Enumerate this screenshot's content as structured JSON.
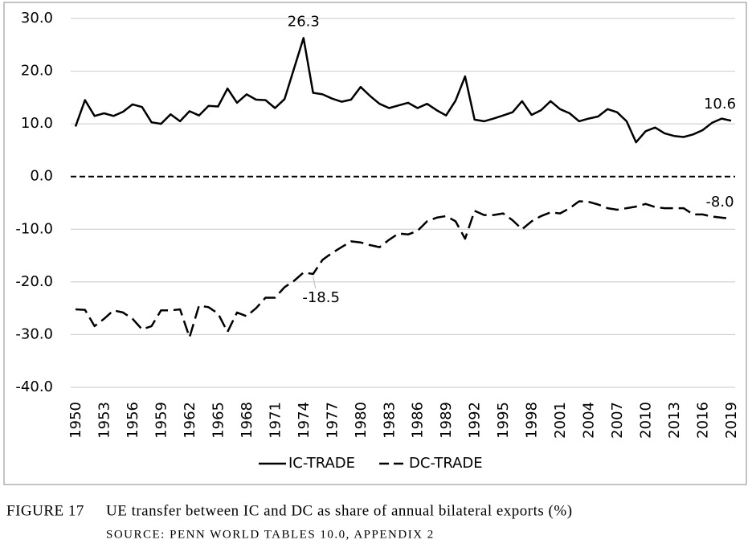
{
  "chart_data": {
    "type": "line",
    "x": [
      1950,
      1951,
      1952,
      1953,
      1954,
      1955,
      1956,
      1957,
      1958,
      1959,
      1960,
      1961,
      1962,
      1963,
      1964,
      1965,
      1966,
      1967,
      1968,
      1969,
      1970,
      1971,
      1972,
      1973,
      1974,
      1975,
      1976,
      1977,
      1978,
      1979,
      1980,
      1981,
      1982,
      1983,
      1984,
      1985,
      1986,
      1987,
      1988,
      1989,
      1990,
      1991,
      1992,
      1993,
      1994,
      1995,
      1996,
      1997,
      1998,
      1999,
      2000,
      2001,
      2002,
      2003,
      2004,
      2005,
      2006,
      2007,
      2008,
      2009,
      2010,
      2011,
      2012,
      2013,
      2014,
      2015,
      2016,
      2017,
      2018,
      2019
    ],
    "xlim": [
      1950,
      2019
    ],
    "xticks": [
      1950,
      1953,
      1956,
      1959,
      1962,
      1965,
      1968,
      1971,
      1974,
      1977,
      1980,
      1983,
      1986,
      1989,
      1992,
      1995,
      1998,
      2001,
      2004,
      2007,
      2010,
      2013,
      2016,
      2019
    ],
    "ylim": [
      -40,
      30
    ],
    "yticks": [
      {
        "value": -40,
        "label": "-40.0"
      },
      {
        "value": -30,
        "label": "-30.0"
      },
      {
        "value": -20,
        "label": "-20.0"
      },
      {
        "value": -10,
        "label": "-10.0"
      },
      {
        "value": 0,
        "label": "0.0"
      },
      {
        "value": 10,
        "label": "10.0"
      },
      {
        "value": 20,
        "label": "20.0"
      },
      {
        "value": 30,
        "label": "30.0"
      }
    ],
    "grid": true,
    "legend": "bottom",
    "series": [
      {
        "name": "IC-TRADE",
        "color": "#000000",
        "line_style": "solid",
        "values": [
          9.5,
          14.5,
          11.5,
          12,
          11.5,
          12.3,
          13.7,
          13.2,
          10.3,
          10,
          11.8,
          10.5,
          12.4,
          11.6,
          13.4,
          13.3,
          16.7,
          14,
          15.6,
          14.6,
          14.5,
          13,
          14.7,
          20.5,
          26.3,
          15.9,
          15.6,
          14.8,
          14.2,
          14.6,
          17,
          15.3,
          13.8,
          13,
          13.5,
          14,
          13,
          13.8,
          12.6,
          11.6,
          14.4,
          19,
          10.8,
          10.5,
          11,
          11.6,
          12.2,
          14.3,
          11.7,
          12.6,
          14.3,
          12.8,
          12,
          10.5,
          11,
          11.4,
          12.8,
          12.2,
          10.5,
          6.5,
          8.6,
          9.3,
          8.2,
          7.7,
          7.5,
          8,
          8.8,
          10.2,
          11,
          10.6
        ],
        "value_labels": [
          null,
          null,
          null,
          null,
          null,
          null,
          null,
          null,
          null,
          null,
          null,
          null,
          null,
          null,
          null,
          null,
          null,
          null,
          null,
          null,
          null,
          null,
          null,
          null,
          "26.3",
          null,
          null,
          null,
          null,
          null,
          null,
          null,
          null,
          null,
          null,
          null,
          null,
          null,
          null,
          null,
          null,
          null,
          null,
          null,
          null,
          null,
          null,
          null,
          null,
          null,
          null,
          null,
          null,
          null,
          null,
          null,
          null,
          null,
          null,
          null,
          null,
          null,
          null,
          null,
          null,
          null,
          null,
          null,
          null,
          "10.6"
        ]
      },
      {
        "name": "DC-TRADE",
        "color": "#000000",
        "line_style": "dashed",
        "values": [
          -25.2,
          -25.3,
          -28.4,
          -27,
          -25.4,
          -25.8,
          -27,
          -29,
          -28.4,
          -25.4,
          -25.4,
          -25.2,
          -30.5,
          -24.5,
          -24.8,
          -26,
          -29.5,
          -25.8,
          -26.5,
          -25,
          -23,
          -23,
          -21,
          -19.8,
          -18.2,
          -18.5,
          -15.8,
          -14.5,
          -13.4,
          -12.3,
          -12.5,
          -13,
          -13.4,
          -12,
          -10.8,
          -11,
          -10.3,
          -8.5,
          -7.8,
          -7.5,
          -8.5,
          -11.8,
          -6.5,
          -7.3,
          -7.3,
          -7,
          -8.3,
          -10,
          -8.5,
          -7.5,
          -6.8,
          -7,
          -6,
          -4.7,
          -4.8,
          -5.3,
          -6,
          -6.3,
          -6,
          -5.7,
          -5.2,
          -5.8,
          -6,
          -6,
          -6,
          -7.2,
          -7.2,
          -7.6,
          -7.8,
          -8.0
        ],
        "value_labels": [
          null,
          null,
          null,
          null,
          null,
          null,
          null,
          null,
          null,
          null,
          null,
          null,
          null,
          null,
          null,
          null,
          null,
          null,
          null,
          null,
          null,
          null,
          null,
          null,
          null,
          "-18.5",
          null,
          null,
          null,
          null,
          null,
          null,
          null,
          null,
          null,
          null,
          null,
          null,
          null,
          null,
          null,
          null,
          null,
          null,
          null,
          null,
          null,
          null,
          null,
          null,
          null,
          null,
          null,
          null,
          null,
          null,
          null,
          null,
          null,
          null,
          null,
          null,
          null,
          null,
          null,
          null,
          null,
          null,
          null,
          "-8.0"
        ]
      }
    ]
  },
  "caption": {
    "label": "FIGURE 17",
    "text": "UE transfer between IC and DC as share of annual bilateral exports (%)",
    "source": "SOURCE: PENN WORLD TABLES 10.0, APPENDIX 2"
  }
}
